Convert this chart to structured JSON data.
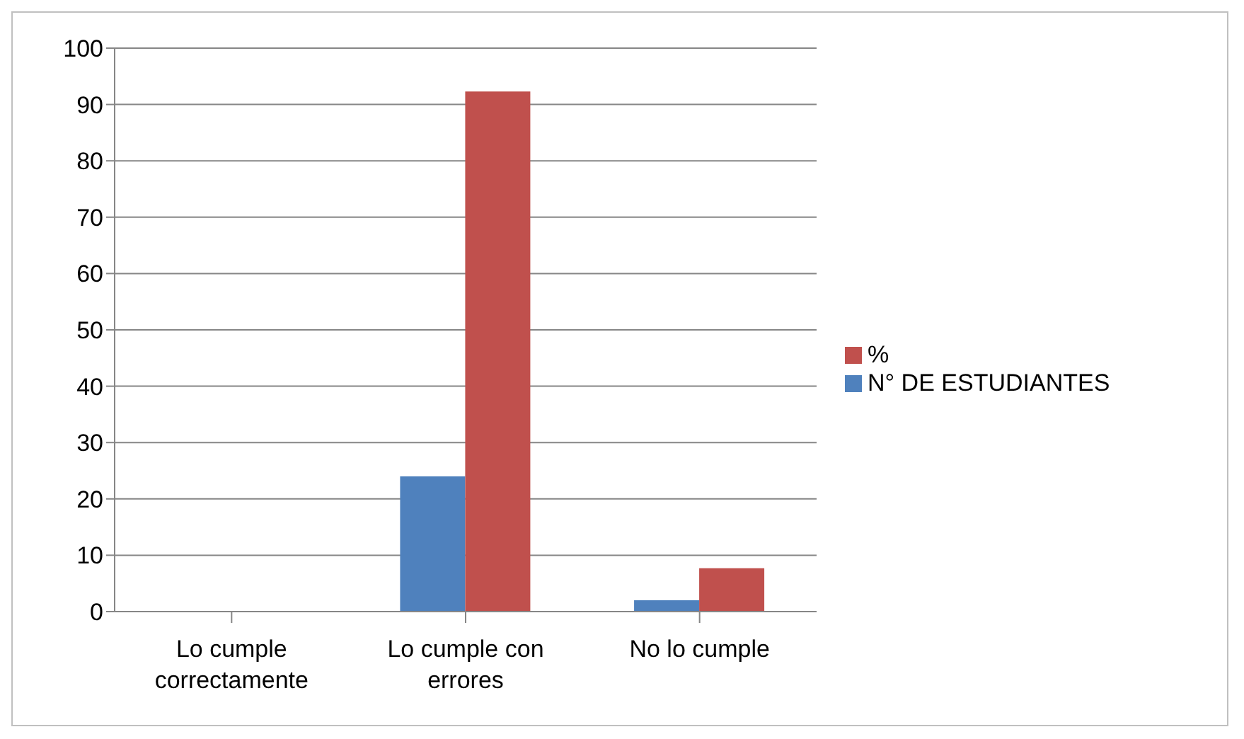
{
  "chart_data": {
    "type": "bar",
    "categories": [
      "Lo cumple correctamente",
      "Lo cumple con errores",
      "No lo cumple"
    ],
    "series": [
      {
        "name": "N° DE ESTUDIANTES",
        "color": "#4f81bd",
        "values": [
          0,
          24,
          2
        ]
      },
      {
        "name": "%",
        "color": "#c0504d",
        "values": [
          0,
          92.3,
          7.7
        ]
      }
    ],
    "ylim": [
      0,
      100
    ],
    "yticks": [
      0,
      10,
      20,
      30,
      40,
      50,
      60,
      70,
      80,
      90,
      100
    ],
    "grid": "y",
    "legend": "right"
  }
}
